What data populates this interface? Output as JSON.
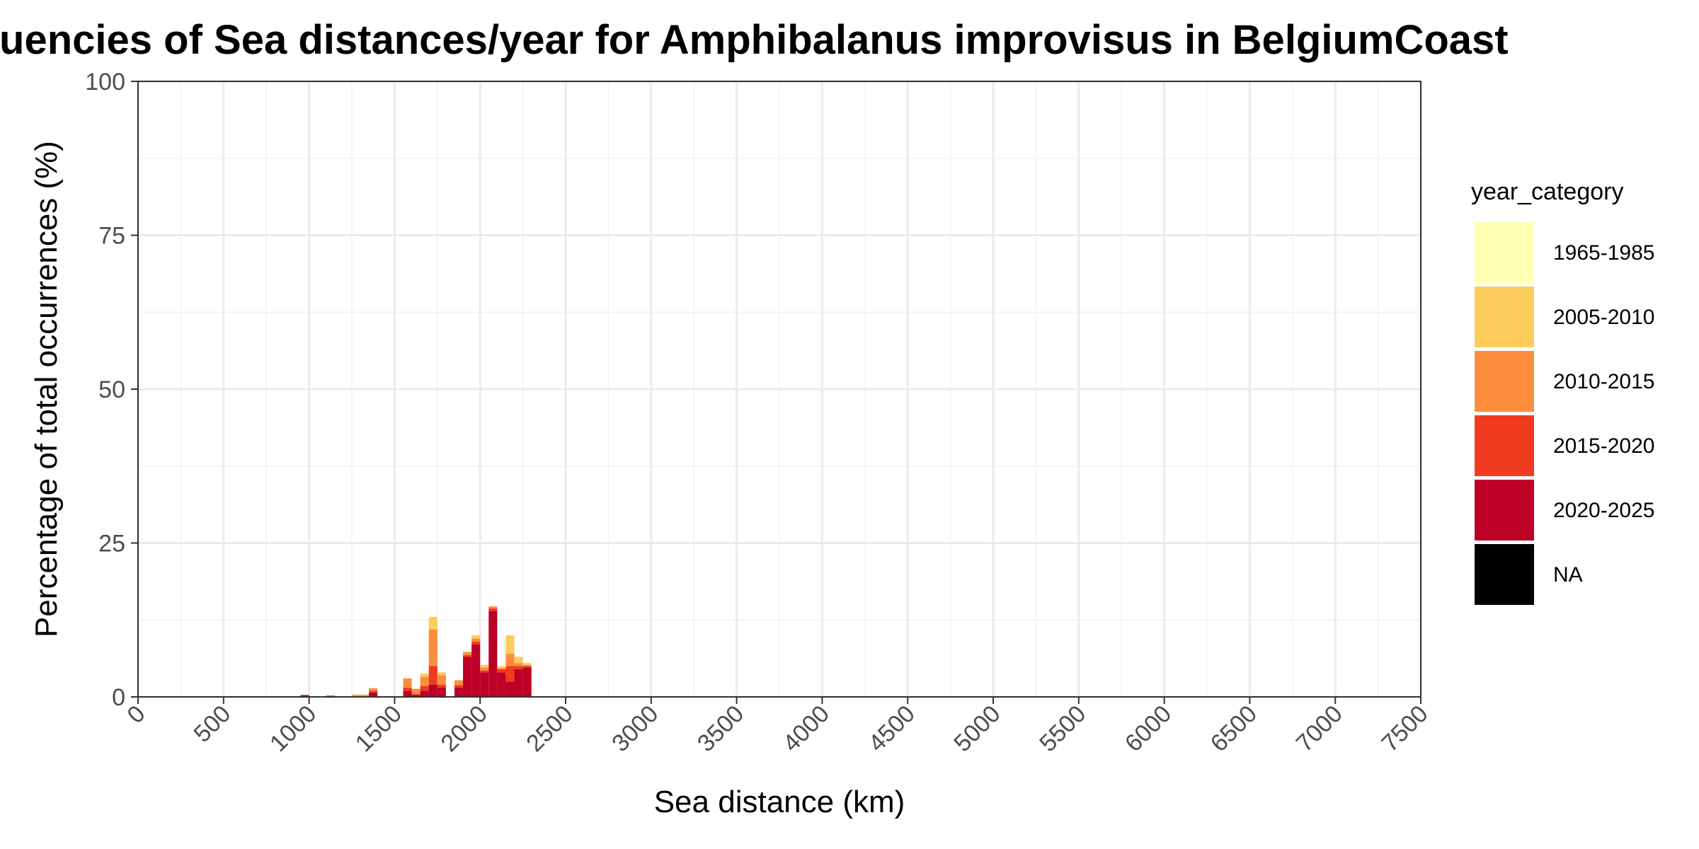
{
  "chart_data": {
    "type": "bar",
    "stacked": true,
    "title": "Frequencies of Sea distances/year for Amphibalanus improvisus in BelgiumCoast",
    "xlabel": "Sea distance (km)",
    "ylabel": "Percentage of total occurrences (%)",
    "xlim": [
      0,
      7500
    ],
    "ylim": [
      0,
      100
    ],
    "x_ticks": [
      "0",
      "500",
      "1000",
      "1500",
      "2000",
      "2500",
      "3000",
      "3500",
      "4000",
      "4500",
      "5000",
      "5500",
      "6000",
      "6500",
      "7000",
      "7500"
    ],
    "y_ticks": [
      "0",
      "25",
      "50",
      "75",
      "100"
    ],
    "bin_width": 50,
    "grid": true,
    "legend": {
      "title": "year_category",
      "placement": "right",
      "entries": [
        {
          "label": "1965-1985",
          "color": "#FFFFB2"
        },
        {
          "label": "2005-2010",
          "color": "#FECC5C"
        },
        {
          "label": "2010-2015",
          "color": "#FD8D3C"
        },
        {
          "label": "2015-2020",
          "color": "#F03B20"
        },
        {
          "label": "2020-2025",
          "color": "#BD0026"
        },
        {
          "label": "NA",
          "color": "#000000"
        }
      ]
    },
    "bins": [
      {
        "x_start": 950,
        "segments": [
          0,
          0,
          0,
          0,
          0.3,
          0
        ]
      },
      {
        "x_start": 1100,
        "segments": [
          0,
          0,
          0,
          0,
          0.2,
          0
        ]
      },
      {
        "x_start": 1250,
        "segments": [
          0,
          0.1,
          0.2,
          0,
          0.1,
          0
        ]
      },
      {
        "x_start": 1300,
        "segments": [
          0,
          0.1,
          0.2,
          0,
          0.1,
          0
        ]
      },
      {
        "x_start": 1350,
        "segments": [
          0,
          0,
          0.4,
          0.3,
          0.7,
          0
        ]
      },
      {
        "x_start": 1550,
        "segments": [
          0,
          0,
          1.5,
          0.5,
          1.0,
          0
        ]
      },
      {
        "x_start": 1600,
        "segments": [
          0,
          0,
          0.8,
          0.2,
          0.3,
          0
        ]
      },
      {
        "x_start": 1650,
        "segments": [
          0,
          0.5,
          1.5,
          0.8,
          1.0,
          0
        ]
      },
      {
        "x_start": 1700,
        "segments": [
          0,
          2.0,
          6.0,
          3.0,
          2.0,
          0
        ]
      },
      {
        "x_start": 1750,
        "segments": [
          0,
          0.5,
          1.5,
          0.5,
          1.5,
          0
        ]
      },
      {
        "x_start": 1850,
        "segments": [
          0,
          0,
          0.8,
          0.4,
          1.5,
          0
        ]
      },
      {
        "x_start": 1900,
        "segments": [
          0,
          0,
          0.5,
          0.3,
          6.5,
          0
        ]
      },
      {
        "x_start": 1950,
        "segments": [
          0,
          0.5,
          0.5,
          0.5,
          8.5,
          0
        ]
      },
      {
        "x_start": 2000,
        "segments": [
          0,
          0.4,
          0.5,
          0.3,
          4.0,
          0
        ]
      },
      {
        "x_start": 2050,
        "segments": [
          0,
          0,
          0.3,
          0.4,
          14.0,
          0
        ]
      },
      {
        "x_start": 2100,
        "segments": [
          0,
          0.3,
          0.2,
          0.5,
          4.0,
          0
        ]
      },
      {
        "x_start": 2150,
        "segments": [
          0,
          3.0,
          2.0,
          2.5,
          2.5,
          0
        ]
      },
      {
        "x_start": 2200,
        "segments": [
          0,
          1.0,
          0.5,
          0.5,
          4.5,
          0
        ]
      },
      {
        "x_start": 2250,
        "segments": [
          0,
          0.3,
          0.2,
          0.2,
          4.8,
          0
        ]
      }
    ]
  }
}
